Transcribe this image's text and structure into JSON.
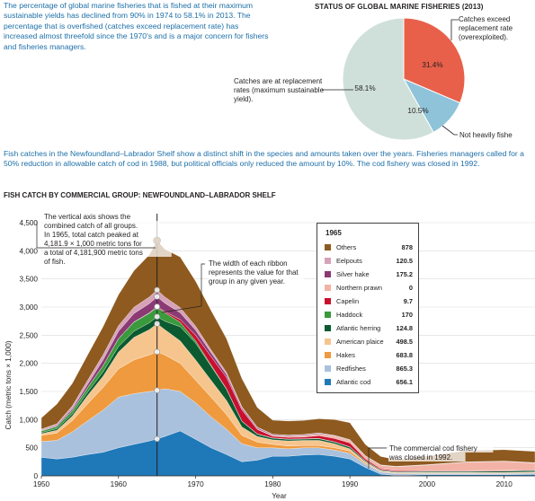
{
  "intro_text": "The percentage of global marine fisheries that is fished at their maximum sustainable yields has declined from 90% in 1974 to 58.1% in 2013. The percentage that is overfished (catches exceed replacement rate) has increased almost threefold since the 1970's and is a major concern for fishers and fisheries managers.",
  "pie": {
    "title": "STATUS OF GLOBAL MARINE FISHERIES (2013)",
    "slices": [
      {
        "value": 58.1,
        "label": "58.1%",
        "note": [
          "Catches are at replacement",
          "rates (maximum sustainable",
          "yield)."
        ],
        "color": "#cfe0da"
      },
      {
        "value": 31.4,
        "label": "31.4%",
        "note": [
          "Catches exceed",
          "replacement rate",
          "(overexploited)."
        ],
        "color": "#e8604a"
      },
      {
        "value": 10.5,
        "label": "10.5%",
        "note": [
          "Not heavily fished"
        ],
        "color": "#8ec3da"
      }
    ]
  },
  "mid_text": "Fish catches in the Newfoundland–Labrador Shelf show a distinct shift in the species and amounts taken over the years. Fisheries managers called for a 50% reduction in allowable catch of cod in 1988, but political officials only reduced the amount by 10%. The cod fishery was closed in 1992.",
  "chart_title": "FISH CATCH BY COMMERCIAL GROUP: NEWFOUNDLAND–LABRADOR SHELF",
  "annotations": {
    "vertical_axis": [
      "The vertical axis shows the",
      "combined catch of all groups.",
      "In 1965, total catch peaked at",
      "4,181.9 × 1,000 metric tons for",
      "a total of 4,181,900 metric tons",
      "of fish."
    ],
    "ribbon": [
      "The width of each ribbon",
      "represents the value for that",
      "group in any given year."
    ],
    "closure": [
      "The commercial cod fishery",
      "was closed in 1992."
    ]
  },
  "legend": {
    "year": "1965",
    "items": [
      {
        "name": "Others",
        "value": "878",
        "color": "#8e5a1f"
      },
      {
        "name": "Eelpouts",
        "value": "120.5",
        "color": "#d6a2b8"
      },
      {
        "name": "Silver hake",
        "value": "175.2",
        "color": "#8b3a74"
      },
      {
        "name": "Northern prawn",
        "value": "0",
        "color": "#f2b3a6"
      },
      {
        "name": "Capelin",
        "value": "9.7",
        "color": "#c8102e"
      },
      {
        "name": "Haddock",
        "value": "170",
        "color": "#3a9a3c"
      },
      {
        "name": "Atlantic herring",
        "value": "124.8",
        "color": "#0c5a30"
      },
      {
        "name": "American plaice",
        "value": "498.5",
        "color": "#f6c58e"
      },
      {
        "name": "Hakes",
        "value": "683.8",
        "color": "#ef9a3e"
      },
      {
        "name": "Redfishes",
        "value": "865.3",
        "color": "#a9c1dd"
      },
      {
        "name": "Atlantic cod",
        "value": "656.1",
        "color": "#1f78b8"
      }
    ]
  },
  "chart_data": {
    "type": "area",
    "title": "FISH CATCH BY COMMERCIAL GROUP: NEWFOUNDLAND–LABRADOR SHELF",
    "xlabel": "Year",
    "ylabel": "Catch (metric tons × 1,000)",
    "xlim": [
      1950,
      2014
    ],
    "ylim": [
      0,
      4500
    ],
    "xticks": [
      "1950",
      "1960",
      "1970",
      "1980",
      "1990",
      "2000",
      "2010"
    ],
    "yticks": [
      "0",
      "500",
      "1,000",
      "1,500",
      "2,000",
      "2,500",
      "3,000",
      "3,500",
      "4,000",
      "4,500"
    ],
    "highlight_year": 1965,
    "x": [
      1950,
      1952,
      1954,
      1956,
      1958,
      1960,
      1962,
      1964,
      1965,
      1966,
      1968,
      1970,
      1972,
      1974,
      1976,
      1978,
      1980,
      1982,
      1984,
      1986,
      1988,
      1990,
      1992,
      1994,
      1996,
      2000,
      2005,
      2010,
      2014
    ],
    "series": [
      {
        "name": "Atlantic cod",
        "values": [
          330,
          300,
          330,
          380,
          420,
          500,
          560,
          620,
          656,
          700,
          800,
          650,
          500,
          380,
          250,
          280,
          350,
          350,
          370,
          380,
          350,
          300,
          150,
          30,
          10,
          20,
          20,
          20,
          25
        ]
      },
      {
        "name": "Redfishes",
        "values": [
          280,
          330,
          450,
          600,
          750,
          900,
          900,
          880,
          865,
          850,
          700,
          650,
          550,
          450,
          320,
          220,
          150,
          130,
          130,
          120,
          110,
          100,
          60,
          40,
          30,
          20,
          20,
          20,
          25
        ]
      },
      {
        "name": "Hakes",
        "values": [
          110,
          130,
          200,
          300,
          400,
          500,
          600,
          650,
          684,
          600,
          500,
          400,
          350,
          260,
          150,
          100,
          60,
          50,
          40,
          40,
          40,
          40,
          20,
          10,
          10,
          10,
          10,
          10,
          10
        ]
      },
      {
        "name": "American plaice",
        "values": [
          30,
          50,
          80,
          150,
          200,
          300,
          400,
          450,
          499,
          450,
          400,
          360,
          300,
          250,
          150,
          100,
          80,
          90,
          90,
          90,
          70,
          40,
          20,
          10,
          10,
          10,
          10,
          10,
          10
        ]
      },
      {
        "name": "Atlantic herring",
        "values": [
          20,
          30,
          40,
          60,
          80,
          100,
          110,
          120,
          125,
          150,
          250,
          300,
          250,
          200,
          100,
          40,
          30,
          30,
          25,
          30,
          30,
          30,
          20,
          15,
          15,
          20,
          20,
          25,
          25
        ]
      },
      {
        "name": "Haddock",
        "values": [
          30,
          40,
          60,
          80,
          110,
          140,
          160,
          170,
          170,
          150,
          80,
          40,
          20,
          10,
          5,
          5,
          5,
          5,
          5,
          5,
          5,
          5,
          2,
          2,
          2,
          2,
          2,
          2,
          2
        ]
      },
      {
        "name": "Capelin",
        "values": [
          0,
          0,
          0,
          0,
          0,
          0,
          5,
          8,
          10,
          20,
          50,
          100,
          150,
          200,
          200,
          80,
          30,
          30,
          30,
          50,
          60,
          70,
          30,
          20,
          15,
          10,
          10,
          10,
          10
        ]
      },
      {
        "name": "Northern prawn",
        "values": [
          0,
          0,
          0,
          0,
          0,
          0,
          0,
          0,
          0,
          0,
          0,
          0,
          0,
          0,
          5,
          10,
          15,
          20,
          25,
          30,
          40,
          45,
          50,
          60,
          70,
          100,
          150,
          160,
          120
        ]
      },
      {
        "name": "Silver hake",
        "values": [
          10,
          15,
          30,
          60,
          100,
          130,
          150,
          165,
          175,
          150,
          120,
          90,
          70,
          50,
          30,
          20,
          15,
          15,
          15,
          15,
          10,
          10,
          5,
          5,
          5,
          5,
          5,
          5,
          5
        ]
      },
      {
        "name": "Eelpouts",
        "values": [
          20,
          30,
          50,
          70,
          90,
          100,
          110,
          115,
          120,
          110,
          90,
          70,
          50,
          40,
          20,
          10,
          5,
          5,
          5,
          5,
          5,
          5,
          2,
          2,
          2,
          2,
          2,
          2,
          2
        ]
      },
      {
        "name": "Others",
        "values": [
          200,
          350,
          400,
          450,
          500,
          550,
          650,
          750,
          878,
          850,
          900,
          800,
          700,
          600,
          500,
          350,
          250,
          250,
          250,
          250,
          280,
          300,
          200,
          150,
          120,
          150,
          200,
          200,
          200
        ]
      }
    ]
  }
}
